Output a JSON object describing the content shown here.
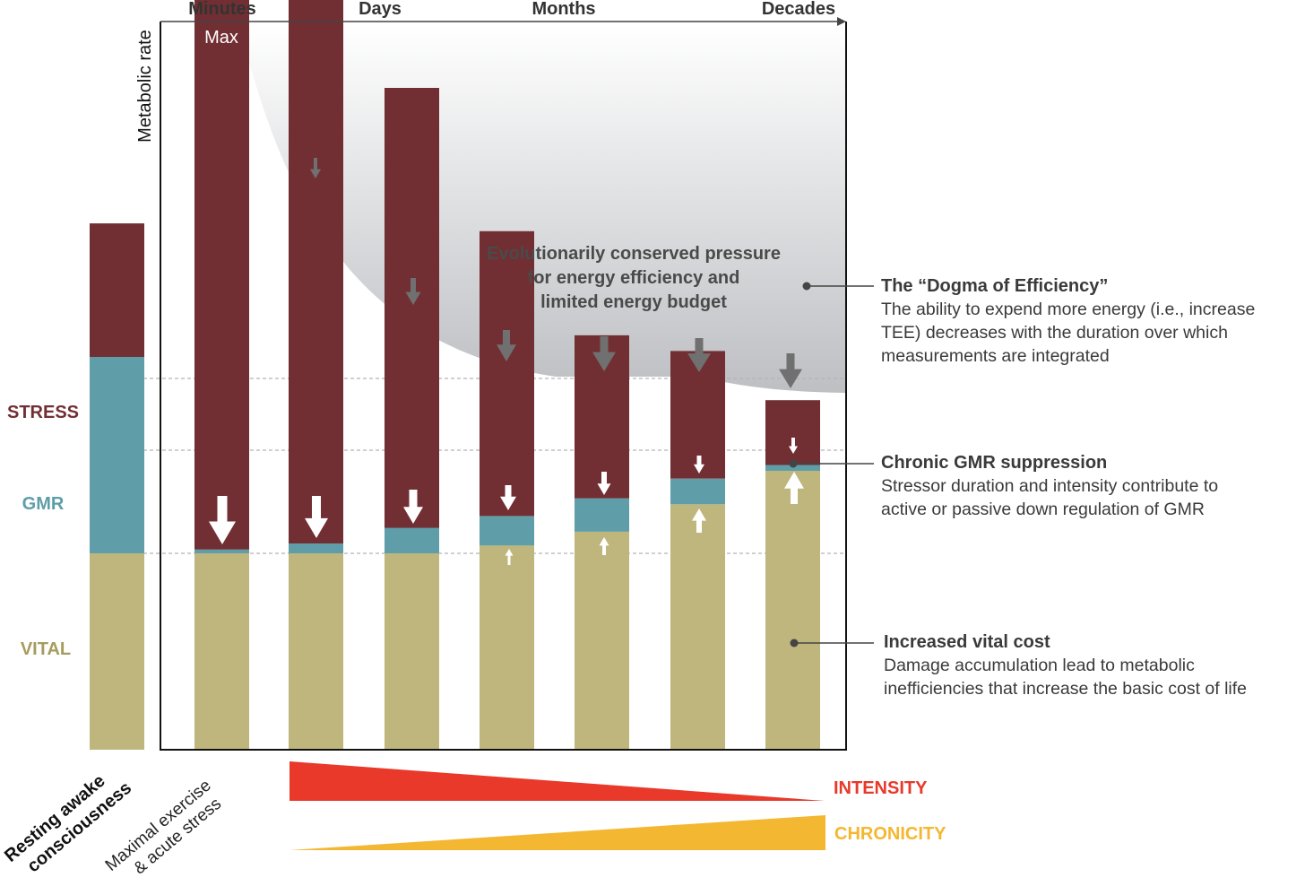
{
  "time_labels": [
    "Minutes",
    "Days",
    "Months",
    "Decades"
  ],
  "y_axis_label": "Metabolic rate",
  "max_label": "Max",
  "pressure_text": [
    "Evolutionarily conserved pressure",
    "for energy efficiency and",
    "limited energy budget"
  ],
  "legend": {
    "stress": "STRESS",
    "gmr": "GMR",
    "vital": "VITAL"
  },
  "colors": {
    "stress": "#722f33",
    "gmr": "#5f9ea8",
    "vital": "#bfb67d",
    "intensity": "#e8392a",
    "chronicity": "#f4b731",
    "gray_arrow": "#707070",
    "pressure_fill": "#c9cbce"
  },
  "baseline_label": [
    "Resting awake",
    "consciousness"
  ],
  "acute_label": [
    "Maximal exercise",
    "& acute stress"
  ],
  "gradients": {
    "intensity": "INTENSITY",
    "chronicity": "CHRONICITY"
  },
  "annotations": [
    {
      "title": "The “Dogma of Efficiency”",
      "lines": [
        "The ability to expend more energy (i.e., increase",
        "TEE) decreases with the duration over which",
        "measurements are integrated"
      ]
    },
    {
      "title": "Chronic GMR suppression",
      "lines": [
        "Stressor duration and intensity contribute to",
        "active or passive down regulation of GMR"
      ]
    },
    {
      "title": "Increased vital cost",
      "lines": [
        "Damage accumulation lead to metabolic",
        "inefficiencies that increase the basic cost of life"
      ]
    }
  ],
  "chart_data": {
    "type": "bar",
    "stacked": true,
    "series": [
      {
        "name": "VITAL",
        "values": [
          1.0,
          1.0,
          1.0,
          1.0,
          1.04,
          1.11,
          1.25,
          1.42
        ]
      },
      {
        "name": "GMR",
        "values": [
          1.0,
          0.02,
          0.05,
          0.13,
          0.15,
          0.17,
          0.13,
          0.03
        ]
      },
      {
        "name": "STRESS",
        "values": [
          0.68,
          5.24,
          3.68,
          2.24,
          1.45,
          0.83,
          0.65,
          0.33
        ]
      }
    ]
  }
}
